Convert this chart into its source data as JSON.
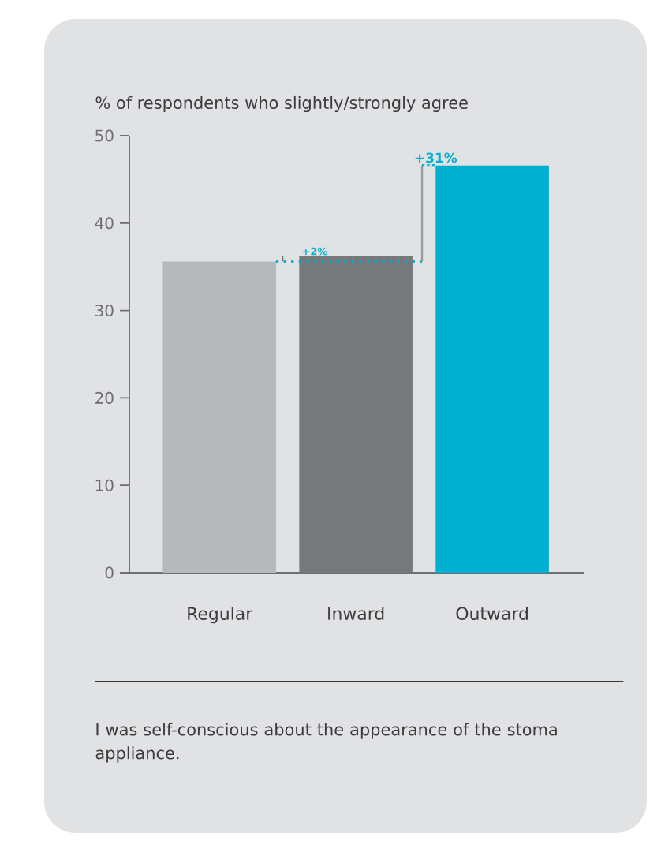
{
  "chart_data": {
    "type": "bar",
    "title": "% of respondents who slightly/strongly agree",
    "categories": [
      "Regular",
      "Inward",
      "Outward"
    ],
    "values": [
      35.6,
      36.2,
      46.6
    ],
    "colors": [
      "#b7b8ba",
      "#77787b",
      "#00b0d0"
    ],
    "ylim": [
      0,
      50
    ],
    "yticks": [
      0,
      10,
      20,
      30,
      40,
      50
    ],
    "ref_lines": [
      {
        "axis": "y",
        "value": 35.6,
        "color": "#00b0d0",
        "line_style": "dotted"
      }
    ],
    "annotations": [
      {
        "text": "+2%",
        "x": "Inward",
        "y": 36.2
      },
      {
        "text": "+31%",
        "x": "Outward",
        "y": 46.6
      },
      "I was self-conscious about the appearance of the stoma appliance."
    ]
  }
}
